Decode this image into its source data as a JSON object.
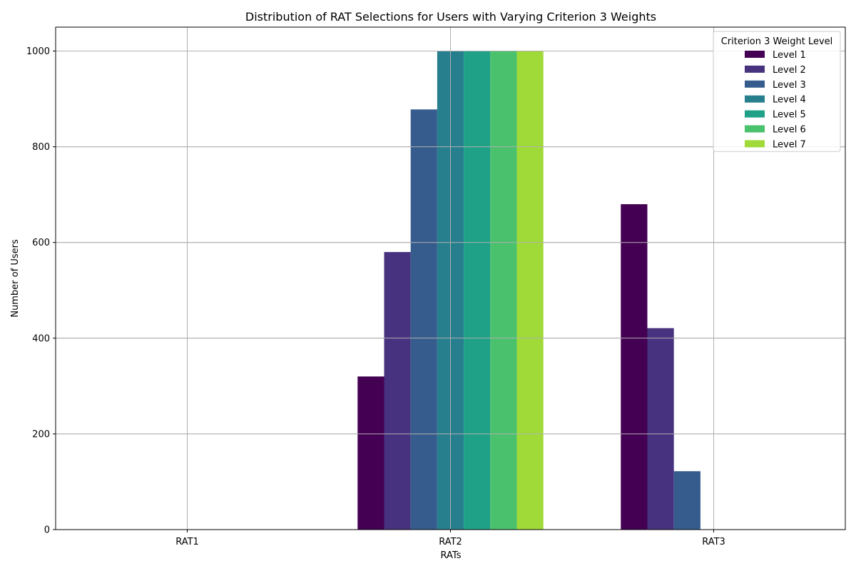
{
  "chart_data": {
    "type": "bar",
    "title": "Distribution of RAT Selections for Users with Varying Criterion 3 Weights",
    "xlabel": "RATs",
    "ylabel": "Number of Users",
    "categories": [
      "RAT1",
      "RAT2",
      "RAT3"
    ],
    "ylim": [
      0,
      1050
    ],
    "yticks": [
      0,
      200,
      400,
      600,
      800,
      1000
    ],
    "grid": true,
    "legend": {
      "title": "Criterion 3 Weight Level",
      "placement": "top-right"
    },
    "series": [
      {
        "name": "Level 1",
        "color": "#440154",
        "values": [
          0,
          320,
          680
        ]
      },
      {
        "name": "Level 2",
        "color": "#46327e",
        "values": [
          0,
          580,
          421
        ]
      },
      {
        "name": "Level 3",
        "color": "#365c8d",
        "values": [
          0,
          878,
          122
        ]
      },
      {
        "name": "Level 4",
        "color": "#277f8e",
        "values": [
          0,
          1000,
          0
        ]
      },
      {
        "name": "Level 5",
        "color": "#1fa187",
        "values": [
          0,
          1000,
          0
        ]
      },
      {
        "name": "Level 6",
        "color": "#4ac16d",
        "values": [
          0,
          1000,
          0
        ]
      },
      {
        "name": "Level 7",
        "color": "#a0da39",
        "values": [
          0,
          1000,
          0
        ]
      }
    ]
  }
}
